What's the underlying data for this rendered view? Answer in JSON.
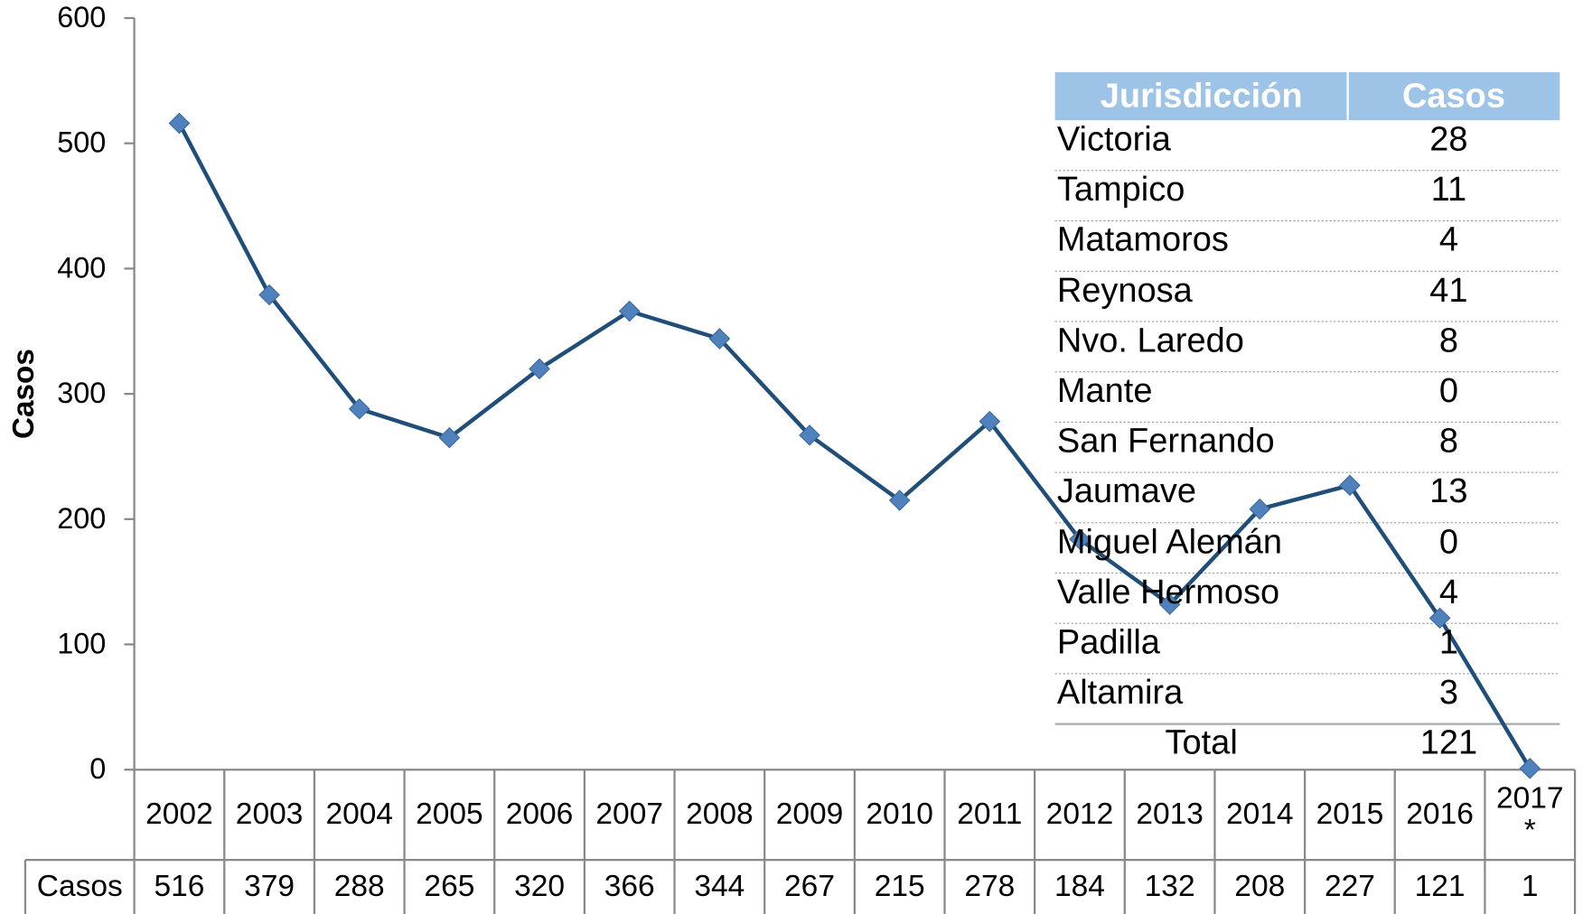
{
  "chart_data": {
    "type": "line",
    "ylabel": "Casos",
    "categories": [
      "2002",
      "2003",
      "2004",
      "2005",
      "2006",
      "2007",
      "2008",
      "2009",
      "2010",
      "2011",
      "2012",
      "2013",
      "2014",
      "2015",
      "2016",
      "2017 *"
    ],
    "series": [
      {
        "name": "Casos",
        "color": "#1f4e79",
        "marker_color": "#4f81bd",
        "values": [
          516,
          379,
          288,
          265,
          320,
          366,
          344,
          267,
          215,
          278,
          184,
          132,
          208,
          227,
          121,
          1
        ]
      }
    ],
    "ylim": [
      0,
      600
    ],
    "yticks": [
      0,
      100,
      200,
      300,
      400,
      500,
      600
    ]
  },
  "table": {
    "header": [
      "Jurisdicción",
      "Casos"
    ],
    "rows": [
      [
        "Victoria",
        "28"
      ],
      [
        "Tampico",
        "11"
      ],
      [
        "Matamoros",
        "4"
      ],
      [
        "Reynosa",
        "41"
      ],
      [
        "Nvo. Laredo",
        "8"
      ],
      [
        "Mante",
        "0"
      ],
      [
        "San Fernando",
        "8"
      ],
      [
        "Jaumave",
        "13"
      ],
      [
        "Miguel Alemán",
        "0"
      ],
      [
        "Valle Hermoso",
        "4"
      ],
      [
        "Padilla",
        "1"
      ],
      [
        "Altamira",
        "3"
      ]
    ],
    "total": [
      "Total",
      "121"
    ]
  }
}
